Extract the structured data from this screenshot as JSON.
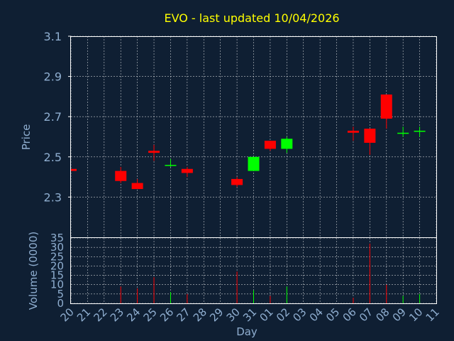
{
  "chart_data": {
    "type": "candlestick",
    "title": "EVO - last updated 10/04/2026",
    "xlabel": "Day",
    "ylabel": "Price",
    "volume_label": "Volume (0000)",
    "price_ylim": [
      2.1,
      3.1
    ],
    "price_ticks": [
      "2.3",
      "2.5",
      "2.7",
      "2.9",
      "3.1"
    ],
    "volume_ylim": [
      0,
      35
    ],
    "volume_ticks": [
      "0",
      "5",
      "10",
      "15",
      "20",
      "25",
      "30",
      "35"
    ],
    "x_labels": [
      "20",
      "21",
      "22",
      "23",
      "24",
      "25",
      "26",
      "27",
      "28",
      "29",
      "30",
      "31",
      "01",
      "02",
      "03",
      "04",
      "05",
      "06",
      "07",
      "08",
      "09",
      "10",
      "11"
    ],
    "up_color": "#00ff00",
    "down_color": "#ff0000",
    "candles": [
      {
        "day": "20",
        "open": 2.44,
        "high": 2.44,
        "low": 2.43,
        "close": 2.43,
        "volume": 0
      },
      {
        "day": "23",
        "open": 2.43,
        "high": 2.45,
        "low": 2.37,
        "close": 2.38,
        "volume": 9
      },
      {
        "day": "24",
        "open": 2.37,
        "high": 2.39,
        "low": 2.34,
        "close": 2.34,
        "volume": 8
      },
      {
        "day": "25",
        "open": 2.53,
        "high": 2.56,
        "low": 2.48,
        "close": 2.52,
        "volume": 14
      },
      {
        "day": "26",
        "open": 2.46,
        "high": 2.49,
        "low": 2.45,
        "close": 2.46,
        "volume": 6
      },
      {
        "day": "27",
        "open": 2.44,
        "high": 2.45,
        "low": 2.4,
        "close": 2.42,
        "volume": 5
      },
      {
        "day": "30",
        "open": 2.39,
        "high": 2.4,
        "low": 2.35,
        "close": 2.36,
        "volume": 17
      },
      {
        "day": "31",
        "open": 2.43,
        "high": 2.5,
        "low": 2.43,
        "close": 2.5,
        "volume": 7
      },
      {
        "day": "01",
        "open": 2.58,
        "high": 2.58,
        "low": 2.53,
        "close": 2.54,
        "volume": 4
      },
      {
        "day": "02",
        "open": 2.54,
        "high": 2.6,
        "low": 2.52,
        "close": 2.59,
        "volume": 9
      },
      {
        "day": "06",
        "open": 2.63,
        "high": 2.65,
        "low": 2.58,
        "close": 2.62,
        "volume": 3
      },
      {
        "day": "07",
        "open": 2.64,
        "high": 2.64,
        "low": 2.51,
        "close": 2.57,
        "volume": 32
      },
      {
        "day": "08",
        "open": 2.81,
        "high": 2.81,
        "low": 2.64,
        "close": 2.69,
        "volume": 10
      },
      {
        "day": "09",
        "open": 2.62,
        "high": 2.65,
        "low": 2.6,
        "close": 2.62,
        "volume": 4
      },
      {
        "day": "10",
        "open": 2.63,
        "high": 2.65,
        "low": 2.6,
        "close": 2.63,
        "volume": 5
      }
    ]
  }
}
